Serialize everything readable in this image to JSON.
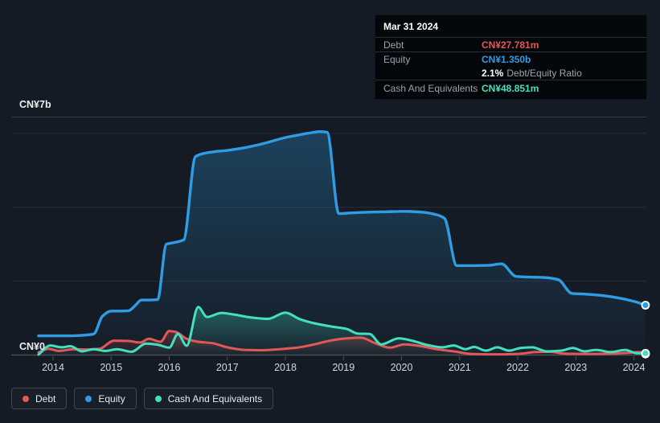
{
  "tooltip": {
    "date": "Mar 31 2024",
    "rows": {
      "debt": {
        "label": "Debt",
        "value": "CN¥27.781m"
      },
      "equity": {
        "label": "Equity",
        "value": "CN¥1.350b"
      },
      "ratio": {
        "value": "2.1%",
        "label": "Debt/Equity Ratio"
      },
      "cash": {
        "label": "Cash And Equivalents",
        "value": "CN¥48.851m"
      }
    }
  },
  "axis": {
    "y_max_label": "CN¥7b",
    "y_zero_label": "CN¥0"
  },
  "legend": {
    "items": [
      {
        "label": "Debt",
        "color": "#e25757"
      },
      {
        "label": "Equity",
        "color": "#2f9ce3"
      },
      {
        "label": "Cash And Equivalents",
        "color": "#43e0bf"
      }
    ]
  },
  "colors": {
    "background": "#151b24",
    "gridline": "#242d36",
    "axis_line": "#434c57",
    "tick_label": "#d3d7dc",
    "debt": "#e25757",
    "equity": "#2f9ce3",
    "cash": "#43e0bf"
  },
  "chart_data": {
    "type": "area",
    "title": "",
    "xlabel": "",
    "ylabel": "CN¥",
    "values_unit": "CN¥ billions",
    "x_ticks": [
      2014,
      2015,
      2016,
      2017,
      2018,
      2019,
      2020,
      2021,
      2022,
      2023,
      2024
    ],
    "x_range": [
      2013.75,
      2024.2
    ],
    "ylim_b": [
      0,
      7
    ],
    "y_gridlines_b": [
      2,
      4,
      6
    ],
    "grid": true,
    "legend_position": "bottom-left",
    "series": [
      {
        "name": "Equity",
        "color": "#2f9ce3",
        "x": [
          2013.75,
          2014.0,
          2014.3,
          2014.55,
          2014.7,
          2014.85,
          2015.0,
          2015.15,
          2015.3,
          2015.42,
          2015.52,
          2015.65,
          2015.8,
          2015.95,
          2016.1,
          2016.25,
          2016.45,
          2016.6,
          2016.8,
          2017.0,
          2017.25,
          2017.5,
          2017.75,
          2018.0,
          2018.2,
          2018.45,
          2018.6,
          2018.72,
          2018.92,
          2019.15,
          2019.45,
          2019.75,
          2020.05,
          2020.35,
          2020.6,
          2020.74,
          2020.95,
          2021.2,
          2021.5,
          2021.72,
          2021.97,
          2022.2,
          2022.45,
          2022.7,
          2022.93,
          2023.15,
          2023.4,
          2023.65,
          2023.85,
          2024.05,
          2024.2
        ],
        "y": [
          0.52,
          0.52,
          0.52,
          0.54,
          0.57,
          1.05,
          1.19,
          1.19,
          1.2,
          1.35,
          1.49,
          1.49,
          1.5,
          3.0,
          3.05,
          3.12,
          5.37,
          5.46,
          5.51,
          5.54,
          5.6,
          5.68,
          5.78,
          5.89,
          5.95,
          6.02,
          6.05,
          6.03,
          3.83,
          3.85,
          3.87,
          3.88,
          3.89,
          3.87,
          3.8,
          3.7,
          2.42,
          2.42,
          2.43,
          2.47,
          2.13,
          2.11,
          2.1,
          2.04,
          1.67,
          1.65,
          1.62,
          1.57,
          1.51,
          1.43,
          1.35
        ]
      },
      {
        "name": "Debt",
        "color": "#e25757",
        "x": [
          2013.75,
          2013.92,
          2014.1,
          2014.35,
          2014.55,
          2014.8,
          2015.05,
          2015.3,
          2015.5,
          2015.65,
          2015.85,
          2016.0,
          2016.12,
          2016.3,
          2016.5,
          2016.75,
          2017.0,
          2017.3,
          2017.6,
          2017.9,
          2018.2,
          2018.5,
          2018.8,
          2019.05,
          2019.3,
          2019.55,
          2019.8,
          2020.05,
          2020.3,
          2020.6,
          2020.9,
          2021.2,
          2021.6,
          2022.0,
          2022.3,
          2022.55,
          2022.8,
          2023.2,
          2023.6,
          2023.9,
          2024.1,
          2024.2
        ],
        "y": [
          0.07,
          0.17,
          0.11,
          0.16,
          0.15,
          0.17,
          0.39,
          0.38,
          0.34,
          0.44,
          0.36,
          0.65,
          0.62,
          0.44,
          0.36,
          0.32,
          0.21,
          0.14,
          0.13,
          0.16,
          0.2,
          0.29,
          0.4,
          0.45,
          0.47,
          0.32,
          0.2,
          0.29,
          0.25,
          0.16,
          0.1,
          0.03,
          0.02,
          0.03,
          0.08,
          0.09,
          0.04,
          0.03,
          0.04,
          0.06,
          0.08,
          0.028
        ]
      },
      {
        "name": "Cash And Equivalents",
        "color": "#43e0bf",
        "x": [
          2013.75,
          2013.95,
          2014.15,
          2014.3,
          2014.5,
          2014.7,
          2014.9,
          2015.1,
          2015.35,
          2015.6,
          2015.8,
          2016.0,
          2016.15,
          2016.3,
          2016.5,
          2016.65,
          2016.9,
          2017.1,
          2017.4,
          2017.7,
          2018.0,
          2018.25,
          2018.5,
          2018.8,
          2019.05,
          2019.25,
          2019.45,
          2019.65,
          2019.95,
          2020.2,
          2020.45,
          2020.7,
          2020.9,
          2021.1,
          2021.25,
          2021.45,
          2021.65,
          2021.85,
          2022.05,
          2022.25,
          2022.5,
          2022.75,
          2022.95,
          2023.15,
          2023.35,
          2023.6,
          2023.85,
          2024.05,
          2024.2
        ],
        "y": [
          0.01,
          0.26,
          0.21,
          0.24,
          0.1,
          0.16,
          0.11,
          0.16,
          0.09,
          0.31,
          0.28,
          0.2,
          0.57,
          0.25,
          1.3,
          1.03,
          1.14,
          1.1,
          1.02,
          0.98,
          1.15,
          0.97,
          0.86,
          0.77,
          0.71,
          0.58,
          0.57,
          0.29,
          0.45,
          0.38,
          0.27,
          0.21,
          0.26,
          0.16,
          0.22,
          0.12,
          0.21,
          0.12,
          0.19,
          0.21,
          0.1,
          0.12,
          0.19,
          0.1,
          0.14,
          0.08,
          0.14,
          0.05,
          0.049
        ]
      }
    ],
    "latest_values": {
      "date": "Mar 31 2024",
      "debt": "CN¥27.781m",
      "equity": "CN¥1.350b",
      "debt_equity_ratio": "2.1%",
      "cash_and_equivalents": "CN¥48.851m"
    }
  }
}
